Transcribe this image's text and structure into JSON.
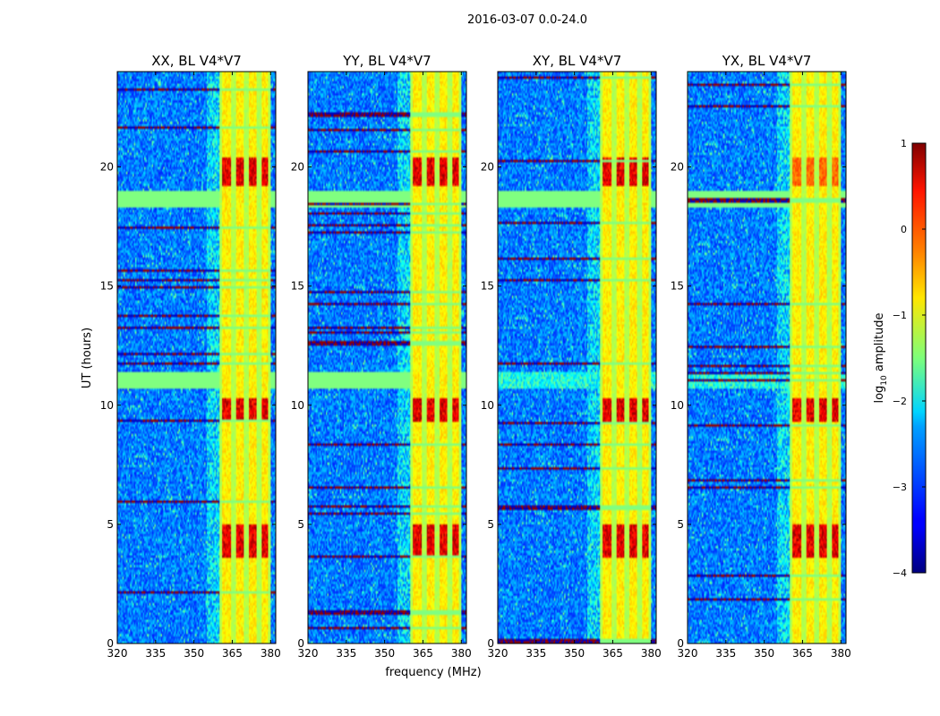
{
  "chart_data": {
    "type": "heatmap",
    "suptitle": "2016-03-07 0.0-24.0",
    "xlabel": "frequency (MHz)",
    "ylabel": "UT (hours)",
    "xlim": [
      320,
      382
    ],
    "ylim": [
      0,
      24
    ],
    "xticks": [
      320,
      335,
      350,
      365,
      380
    ],
    "yticks": [
      0,
      5,
      10,
      15,
      20
    ],
    "panels": [
      {
        "title": "XX, BL V4*V7",
        "polarization": "XX"
      },
      {
        "title": "YY, BL V4*V7",
        "polarization": "YY"
      },
      {
        "title": "XY, BL V4*V7",
        "polarization": "XY"
      },
      {
        "title": "YX, BL V4*V7",
        "polarization": "YX"
      }
    ],
    "colorbar": {
      "label": "log10 amplitude",
      "label_main": "log",
      "label_sub": "10",
      "label_rest": " amplitude",
      "range": [
        -4,
        1
      ],
      "ticks": [
        1,
        0,
        -1,
        -2,
        -3,
        -4
      ],
      "tick_labels": [
        "1",
        "0",
        "−1",
        "−2",
        "−3",
        "−4"
      ],
      "colormap": "jet"
    },
    "features": {
      "strong_band_mhz": [
        360,
        380
      ],
      "sub_band_edges_mhz": [
        360,
        365.5,
        370.5,
        375.5,
        380
      ],
      "high_amplitude_time_bands_hours": [
        [
          3.6,
          5.0
        ],
        [
          9.3,
          10.3
        ],
        [
          19.2,
          20.4
        ]
      ],
      "rfi_time_bands_hours": [
        [
          10.7,
          11.4
        ],
        [
          18.3,
          19.0
        ]
      ]
    }
  }
}
